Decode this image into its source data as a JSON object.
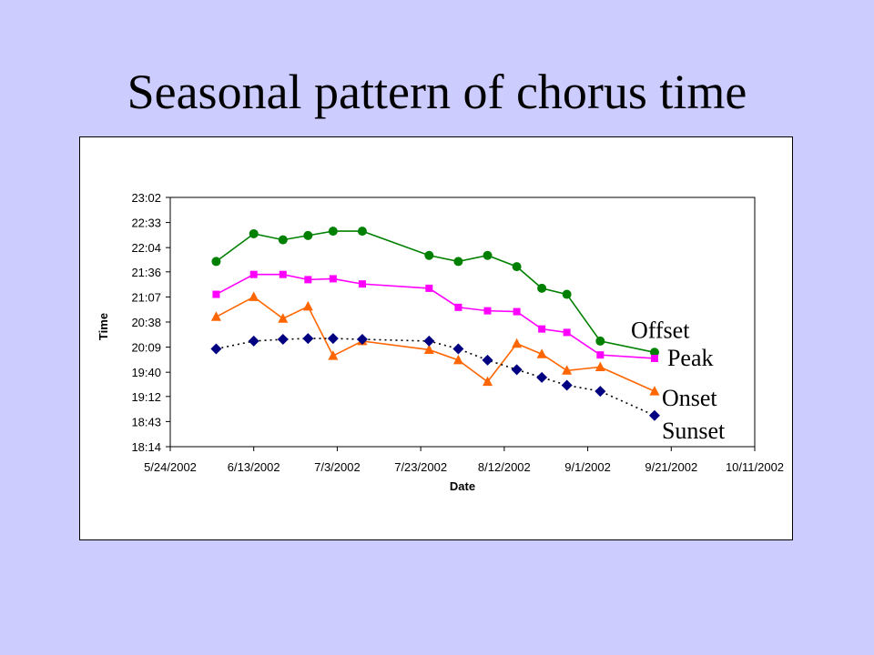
{
  "slide": {
    "title": "Seasonal pattern of chorus time"
  },
  "chart_data": {
    "type": "line",
    "xlabel": "Date",
    "ylabel": "Time",
    "x_ticks": [
      "2002-05-24",
      "2002-06-13",
      "2002-07-03",
      "2002-07-23",
      "2002-08-12",
      "2002-09-01",
      "2002-09-21",
      "2002-10-11"
    ],
    "x_tick_labels": [
      "5/24/2002",
      "6/13/2002",
      "7/3/2002",
      "7/23/2002",
      "8/12/2002",
      "9/1/2002",
      "9/21/2002",
      "10/11/2002"
    ],
    "xlim": [
      "2002-05-24",
      "2002-10-11"
    ],
    "y_ticks": [
      "18:14",
      "18:43",
      "19:12",
      "19:40",
      "20:09",
      "20:38",
      "21:07",
      "21:36",
      "22:04",
      "22:33",
      "23:02"
    ],
    "ylim": [
      "18:14",
      "23:02"
    ],
    "grid": false,
    "legend": "none",
    "series": [
      {
        "name": "Offset",
        "color": "#008000",
        "marker": "circle",
        "line_style": "solid",
        "points": [
          [
            "2002-06-04",
            "21:48"
          ],
          [
            "2002-06-13",
            "22:20"
          ],
          [
            "2002-06-20",
            "22:13"
          ],
          [
            "2002-06-26",
            "22:18"
          ],
          [
            "2002-07-02",
            "22:23"
          ],
          [
            "2002-07-09",
            "22:23"
          ],
          [
            "2002-07-25",
            "21:55"
          ],
          [
            "2002-08-01",
            "21:48"
          ],
          [
            "2002-08-08",
            "21:55"
          ],
          [
            "2002-08-15",
            "21:42"
          ],
          [
            "2002-08-21",
            "21:17"
          ],
          [
            "2002-08-27",
            "21:10"
          ],
          [
            "2002-09-04",
            "20:16"
          ],
          [
            "2002-09-17",
            "20:03"
          ]
        ]
      },
      {
        "name": "Peak",
        "color": "#ff00ff",
        "marker": "square",
        "line_style": "solid",
        "points": [
          [
            "2002-06-04",
            "21:10"
          ],
          [
            "2002-06-13",
            "21:33"
          ],
          [
            "2002-06-20",
            "21:33"
          ],
          [
            "2002-06-26",
            "21:27"
          ],
          [
            "2002-07-02",
            "21:28"
          ],
          [
            "2002-07-09",
            "21:22"
          ],
          [
            "2002-07-25",
            "21:17"
          ],
          [
            "2002-08-01",
            "20:55"
          ],
          [
            "2002-08-08",
            "20:51"
          ],
          [
            "2002-08-15",
            "20:50"
          ],
          [
            "2002-08-21",
            "20:30"
          ],
          [
            "2002-08-27",
            "20:26"
          ],
          [
            "2002-09-04",
            "20:00"
          ],
          [
            "2002-09-17",
            "19:56"
          ]
        ]
      },
      {
        "name": "Onset",
        "color": "#ff6600",
        "marker": "triangle",
        "line_style": "solid",
        "points": [
          [
            "2002-06-04",
            "20:44"
          ],
          [
            "2002-06-13",
            "21:07"
          ],
          [
            "2002-06-20",
            "20:42"
          ],
          [
            "2002-06-26",
            "20:56"
          ],
          [
            "2002-07-02",
            "19:59"
          ],
          [
            "2002-07-09",
            "20:16"
          ],
          [
            "2002-07-25",
            "20:06"
          ],
          [
            "2002-08-01",
            "19:54"
          ],
          [
            "2002-08-08",
            "19:29"
          ],
          [
            "2002-08-15",
            "20:13"
          ],
          [
            "2002-08-21",
            "20:01"
          ],
          [
            "2002-08-27",
            "19:42"
          ],
          [
            "2002-09-04",
            "19:46"
          ],
          [
            "2002-09-17",
            "19:18"
          ]
        ]
      },
      {
        "name": "Sunset",
        "color": "#000080",
        "marker": "diamond",
        "line_style": "dotted",
        "points": [
          [
            "2002-06-04",
            "20:07"
          ],
          [
            "2002-06-13",
            "20:16"
          ],
          [
            "2002-06-20",
            "20:18"
          ],
          [
            "2002-06-26",
            "20:19"
          ],
          [
            "2002-07-02",
            "20:19"
          ],
          [
            "2002-07-09",
            "20:18"
          ],
          [
            "2002-07-25",
            "20:16"
          ],
          [
            "2002-08-01",
            "20:07"
          ],
          [
            "2002-08-08",
            "19:54"
          ],
          [
            "2002-08-15",
            "19:43"
          ],
          [
            "2002-08-21",
            "19:34"
          ],
          [
            "2002-08-27",
            "19:25"
          ],
          [
            "2002-09-04",
            "19:18"
          ],
          [
            "2002-09-17",
            "18:50"
          ]
        ]
      }
    ]
  }
}
